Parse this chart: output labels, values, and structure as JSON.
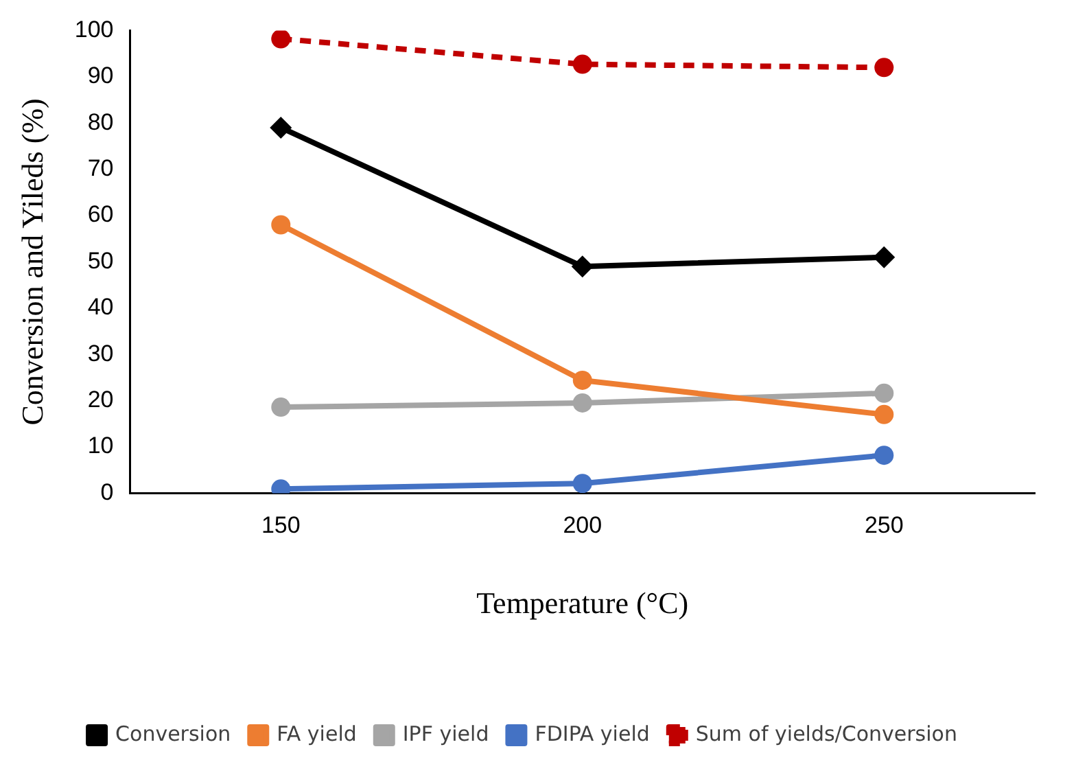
{
  "chart_data": {
    "type": "line",
    "xlabel": "Temperature (°C)",
    "ylabel": "Conversion and Yileds (%)",
    "categories": [
      "150",
      "200",
      "250"
    ],
    "ylim": [
      0,
      100
    ],
    "yticks": [
      0,
      10,
      20,
      30,
      40,
      50,
      60,
      70,
      80,
      90,
      100
    ],
    "grid": false,
    "legend": "bottom",
    "series": [
      {
        "name": "Conversion",
        "color": "#000000",
        "marker": "diamond",
        "line_style": "solid",
        "values": [
          79,
          49,
          51
        ]
      },
      {
        "name": "FA yield",
        "color": "#ed7d31",
        "marker": "circle",
        "line_style": "solid",
        "values": [
          58,
          24.4,
          17
        ]
      },
      {
        "name": "IPF yield",
        "color": "#a5a5a5",
        "marker": "circle",
        "line_style": "solid",
        "values": [
          18.6,
          19.5,
          21.6
        ]
      },
      {
        "name": "FDIPA yield",
        "color": "#4472c4",
        "marker": "circle",
        "line_style": "solid",
        "values": [
          0.9,
          2.1,
          8.2
        ]
      },
      {
        "name": "Sum of yields/Conversion",
        "color": "#c00000",
        "marker": "circle",
        "line_style": "dashed",
        "values": [
          98.2,
          92.7,
          92
        ]
      }
    ]
  }
}
